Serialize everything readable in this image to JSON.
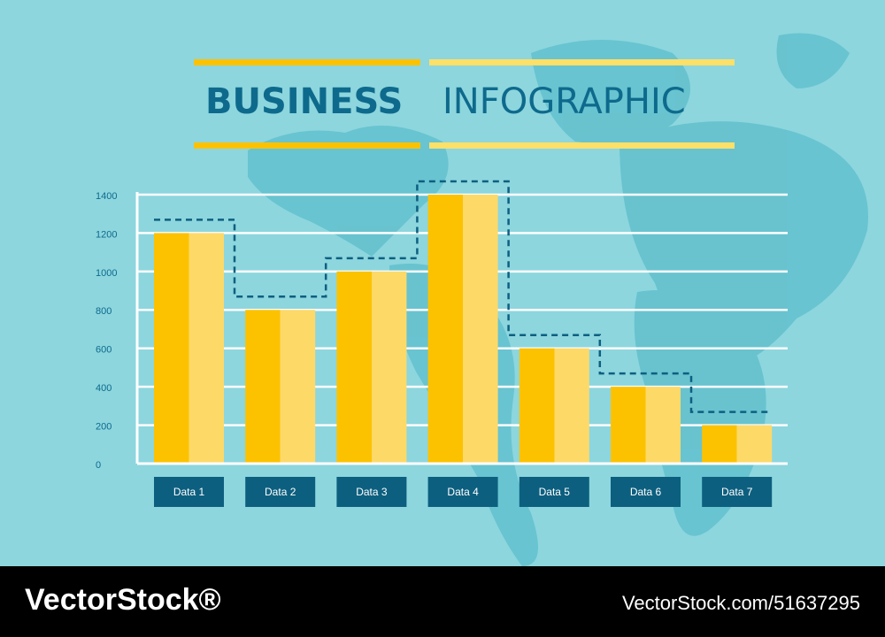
{
  "chart_data": {
    "type": "bar",
    "title": [
      "BUSINESS",
      "INFOGRAPHIC"
    ],
    "categories": [
      "Data 1",
      "Data 2",
      "Data 3",
      "Data 4",
      "Data 5",
      "Data 6",
      "Data 7"
    ],
    "values": [
      1200,
      800,
      1000,
      1400,
      600,
      400,
      200
    ],
    "colors": [
      "#fcc200",
      "#fdd968"
    ],
    "ylim": [
      0,
      1400
    ],
    "yticks": [
      0,
      200,
      400,
      600,
      800,
      1000,
      1200,
      1400
    ],
    "grid": true
  },
  "footer": {
    "brand": "VectorStock®",
    "id": "VectorStock.com/51637295"
  }
}
